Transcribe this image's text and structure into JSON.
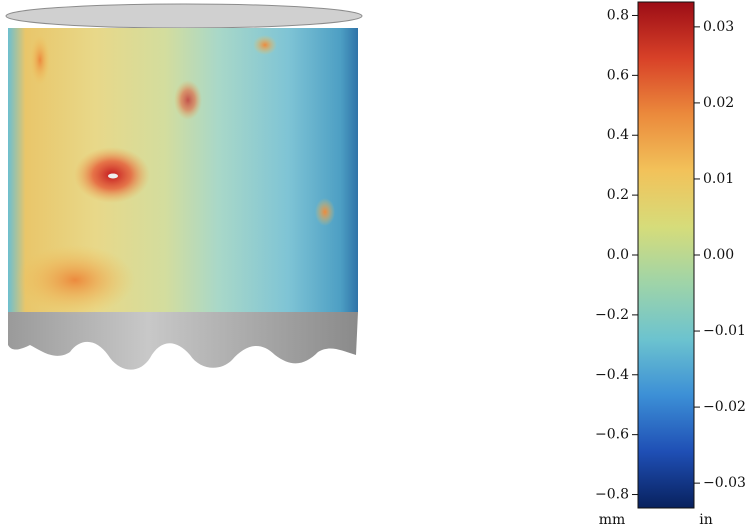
{
  "chart_data": {
    "type": "colorbar",
    "ylabel": "mm",
    "y2label": "in",
    "ylim": [
      -0.845,
      0.845
    ],
    "yticks": [
      {
        "value": -0.8,
        "label": "−0.8"
      },
      {
        "value": -0.6,
        "label": "−0.6"
      },
      {
        "value": -0.4,
        "label": "−0.4"
      },
      {
        "value": -0.2,
        "label": "−0.2"
      },
      {
        "value": 0,
        "label": "0.0"
      },
      0.2,
      0.4,
      0.6,
      0.8
    ],
    "y2lim": [
      -0.03327,
      0.03327
    ],
    "y2ticks": [
      {
        "value": -0.03,
        "label": "−0.03"
      },
      {
        "value": -0.02,
        "label": "−0.02"
      },
      {
        "value": -0.01,
        "label": "−0.01"
      },
      {
        "value": 0,
        "label": "0.00"
      },
      0.01,
      0.02,
      0.03
    ],
    "colormap": [
      "#08215e",
      "#1f4fb5",
      "#3c8fd6",
      "#6cc3cf",
      "#9fd4a8",
      "#d6dc7a",
      "#f2c25a",
      "#eb8a3c",
      "#d84128",
      "#9c0d16"
    ]
  }
}
